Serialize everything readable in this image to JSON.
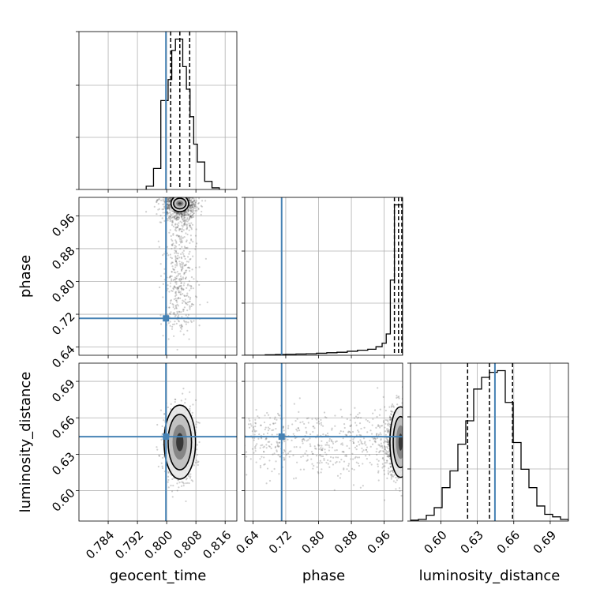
{
  "chart_data": {
    "type": "corner",
    "parameters": [
      {
        "name": "geocent_time",
        "label": "geocent_time",
        "range": [
          0.776,
          0.8192
        ],
        "ticks": [
          0.784,
          0.792,
          0.8,
          0.808,
          0.816
        ],
        "tick_labels": [
          "0.784",
          "0.792",
          "0.800",
          "0.808",
          "0.816"
        ],
        "injection": 0.7998,
        "quantiles": [
          0.8011,
          0.8036,
          0.8063
        ]
      },
      {
        "name": "phase",
        "label": "phase",
        "range": [
          0.62,
          1.005
        ],
        "ticks": [
          0.64,
          0.72,
          0.8,
          0.88,
          0.96
        ],
        "tick_labels": [
          "0.64",
          "0.72",
          "0.80",
          "0.88",
          "0.96"
        ],
        "injection": 0.71,
        "quantiles": [
          0.985,
          0.995,
          1.003
        ]
      },
      {
        "name": "luminosity_distance",
        "label": "luminosity_distance",
        "range": [
          0.575,
          0.705
        ],
        "ticks": [
          0.6,
          0.63,
          0.66,
          0.69
        ],
        "tick_labels": [
          "0.60",
          "0.63",
          "0.66",
          "0.69"
        ],
        "injection": 0.6445,
        "quantiles": [
          0.622,
          0.64,
          0.659
        ]
      }
    ],
    "histograms": {
      "geocent_time": {
        "edges": [
          0.7944,
          0.7964,
          0.7984,
          0.8004,
          0.8014,
          0.8024,
          0.8034,
          0.8044,
          0.8054,
          0.8064,
          0.8074,
          0.8084,
          0.8104,
          0.8124,
          0.8144
        ],
        "values": [
          0.02,
          0.13,
          0.55,
          0.68,
          0.86,
          0.93,
          0.93,
          0.76,
          0.62,
          0.45,
          0.28,
          0.17,
          0.05,
          0.01
        ]
      },
      "phase": {
        "edges": [
          0.62,
          0.645,
          0.67,
          0.695,
          0.72,
          0.745,
          0.77,
          0.795,
          0.82,
          0.845,
          0.87,
          0.895,
          0.92,
          0.94,
          0.955,
          0.965,
          0.975,
          0.985,
          0.995,
          1.005
        ],
        "values": [
          0.0,
          0.0,
          0.002,
          0.003,
          0.004,
          0.005,
          0.006,
          0.008,
          0.01,
          0.012,
          0.016,
          0.02,
          0.024,
          0.034,
          0.048,
          0.085,
          0.3,
          0.6,
          0.6
        ]
      },
      "luminosity_distance": {
        "edges": [
          0.575,
          0.5815,
          0.588,
          0.5945,
          0.601,
          0.6075,
          0.614,
          0.6205,
          0.627,
          0.6335,
          0.64,
          0.6465,
          0.653,
          0.6595,
          0.666,
          0.6725,
          0.679,
          0.6855,
          0.692,
          0.6985,
          0.705
        ],
        "values": [
          0.005,
          0.01,
          0.035,
          0.08,
          0.2,
          0.3,
          0.46,
          0.6,
          0.79,
          0.86,
          0.89,
          0.9,
          0.71,
          0.47,
          0.31,
          0.2,
          0.09,
          0.04,
          0.025,
          0.01
        ]
      }
    },
    "pairs": [
      {
        "x": "geocent_time",
        "y": "phase",
        "center": [
          0.8036,
          0.99
        ],
        "spread": [
          0.0022,
          0.032
        ],
        "contour_levels": [
          [
            0.0024,
            0.02
          ],
          [
            0.0017,
            0.013
          ],
          [
            0.001,
            0.007
          ],
          [
            0.0005,
            0.003
          ]
        ]
      },
      {
        "x": "geocent_time",
        "y": "luminosity_distance",
        "center": [
          0.8036,
          0.64
        ],
        "spread": [
          0.0018,
          0.0135
        ],
        "contour_levels": [
          [
            0.0043,
            0.0304
          ],
          [
            0.0032,
            0.0228
          ],
          [
            0.002,
            0.0145
          ],
          [
            0.001,
            0.0075
          ]
        ]
      },
      {
        "x": "phase",
        "y": "luminosity_distance",
        "center": [
          1.0,
          0.64
        ],
        "spread": [
          0.07,
          0.0135
        ],
        "contour_levels": [
          [
            0.026,
            0.029
          ],
          [
            0.018,
            0.021
          ],
          [
            0.011,
            0.0138
          ],
          [
            0.005,
            0.007
          ]
        ]
      }
    ],
    "injection_color": "#4682b4",
    "grid": true,
    "legend": "none"
  }
}
